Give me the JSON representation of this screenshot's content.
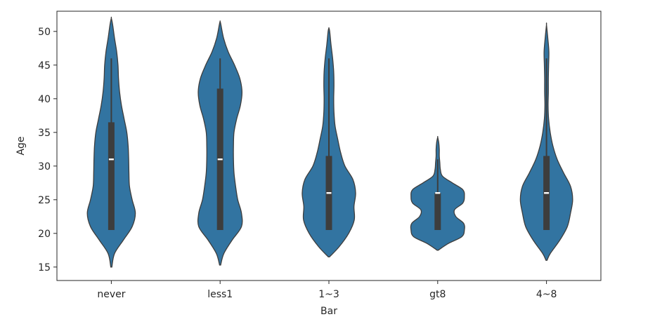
{
  "chart_data": {
    "type": "violin",
    "xlabel": "Bar",
    "ylabel": "Age",
    "ylim": [
      13,
      53
    ],
    "yticks": [
      15,
      20,
      25,
      30,
      35,
      40,
      45,
      50
    ],
    "categories": [
      "never",
      "less1",
      "1~3",
      "gt8",
      "4~8"
    ],
    "violin_color": "#3274a1",
    "box_color": "#3d3d3d",
    "median_color": "#ffffff",
    "violins": [
      {
        "category": "never",
        "min_extent": 15,
        "max_extent": 52,
        "q1": 20.5,
        "median": 31,
        "q3": 36.5,
        "whisker_low": 20.5,
        "whisker_high": 46,
        "density_y": [
          15,
          17,
          19,
          21,
          23,
          25,
          27,
          29,
          31,
          33,
          35,
          37,
          39,
          41,
          43,
          45,
          47,
          49,
          51,
          52
        ],
        "density_w": [
          0.02,
          0.12,
          0.45,
          0.78,
          0.9,
          0.78,
          0.68,
          0.66,
          0.65,
          0.63,
          0.58,
          0.48,
          0.38,
          0.31,
          0.27,
          0.25,
          0.2,
          0.12,
          0.05,
          0.0
        ]
      },
      {
        "category": "less1",
        "min_extent": 15.3,
        "max_extent": 51.5,
        "q1": 20.5,
        "median": 31,
        "q3": 41.5,
        "whisker_low": 20.5,
        "whisker_high": 46,
        "density_y": [
          15.3,
          17,
          19,
          21,
          23,
          25,
          27,
          29,
          31,
          33,
          35,
          37,
          39,
          41,
          43,
          45,
          47,
          49,
          51,
          51.5
        ],
        "density_w": [
          0.02,
          0.14,
          0.45,
          0.8,
          0.8,
          0.66,
          0.58,
          0.52,
          0.5,
          0.5,
          0.52,
          0.62,
          0.76,
          0.82,
          0.74,
          0.54,
          0.3,
          0.13,
          0.03,
          0.0
        ]
      },
      {
        "category": "1~3",
        "min_extent": 16.5,
        "max_extent": 50.5,
        "q1": 20.5,
        "median": 26,
        "q3": 31.5,
        "whisker_low": 20.5,
        "whisker_high": 46,
        "density_y": [
          16.5,
          18,
          20,
          22,
          24,
          26,
          28,
          30,
          32,
          34,
          36,
          38,
          40,
          42,
          44,
          46,
          48,
          50,
          50.5
        ],
        "density_w": [
          0.02,
          0.38,
          0.74,
          0.95,
          0.94,
          1.0,
          0.9,
          0.6,
          0.44,
          0.33,
          0.23,
          0.19,
          0.18,
          0.19,
          0.18,
          0.14,
          0.08,
          0.03,
          0.0
        ]
      },
      {
        "category": "gt8",
        "min_extent": 17.5,
        "max_extent": 34.3,
        "q1": 20.5,
        "median": 26,
        "q3": 26,
        "whisker_low": 20.5,
        "whisker_high": 31,
        "density_y": [
          17.5,
          18.5,
          19.5,
          20.5,
          21.5,
          22.5,
          23.5,
          24.5,
          25.5,
          26.5,
          27.5,
          28.5,
          29.5,
          30.5,
          31.5,
          32.5,
          33.5,
          34.3
        ],
        "density_w": [
          0.02,
          0.4,
          0.9,
          1.0,
          0.97,
          0.68,
          0.63,
          0.94,
          1.0,
          0.94,
          0.55,
          0.18,
          0.1,
          0.08,
          0.06,
          0.06,
          0.04,
          0.0
        ]
      },
      {
        "category": "4~8",
        "min_extent": 16,
        "max_extent": 51,
        "q1": 20.5,
        "median": 26,
        "q3": 31.5,
        "whisker_low": 20.5,
        "whisker_high": 46,
        "density_y": [
          16,
          17,
          19,
          21,
          23,
          25,
          27,
          29,
          31,
          33,
          35,
          37,
          39,
          41,
          43,
          45,
          47,
          49,
          51
        ],
        "density_w": [
          0.02,
          0.14,
          0.5,
          0.78,
          0.9,
          0.98,
          0.9,
          0.64,
          0.4,
          0.24,
          0.14,
          0.08,
          0.06,
          0.07,
          0.07,
          0.08,
          0.09,
          0.05,
          0.0
        ]
      }
    ]
  }
}
